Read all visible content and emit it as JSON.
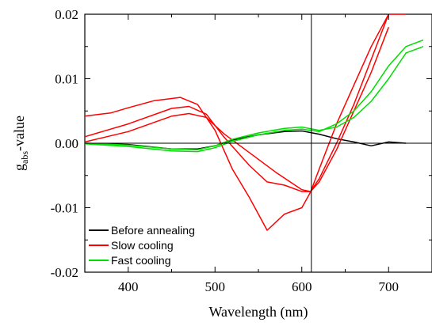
{
  "chart_data": {
    "type": "line",
    "xlabel": "Wavelength (nm)",
    "ylabel_main": "g",
    "ylabel_sub": "abs",
    "ylabel_rest": "-value",
    "xlim": [
      350,
      750
    ],
    "ylim": [
      -0.02,
      0.02
    ],
    "x_ticks": [
      400,
      500,
      600,
      700
    ],
    "x_tick_labels": [
      "400",
      "500",
      "600",
      "700"
    ],
    "y_ticks": [
      -0.02,
      -0.01,
      0.0,
      0.01,
      0.02
    ],
    "y_tick_labels": [
      "-0.02",
      "-0.01",
      "0.00",
      "0.01",
      "0.02"
    ],
    "reference_lines": {
      "horizontal_y": 0.0,
      "vertical_x": 611
    },
    "grid": false,
    "legend_position": "bottom-left",
    "series": [
      {
        "name": "Before annealing",
        "color": "#000000",
        "x": [
          350,
          400,
          450,
          480,
          500,
          520,
          550,
          580,
          600,
          620,
          640,
          660,
          680,
          700,
          720
        ],
        "y": [
          0.0,
          -0.0002,
          -0.0009,
          -0.0009,
          -0.0004,
          0.0005,
          0.0013,
          0.0018,
          0.0019,
          0.0014,
          0.0007,
          0.0002,
          -0.0004,
          0.0002,
          0.0
        ]
      },
      {
        "name": "Slow cooling",
        "color": "#ff0000",
        "x": [
          350,
          380,
          400,
          430,
          460,
          480,
          500,
          520,
          540,
          560,
          580,
          600,
          610,
          620,
          640,
          660,
          680,
          700,
          720
        ],
        "y": [
          0.0042,
          0.0047,
          0.0055,
          0.0066,
          0.0071,
          0.006,
          0.002,
          -0.004,
          -0.0085,
          -0.0135,
          -0.011,
          -0.01,
          -0.0076,
          -0.004,
          0.003,
          0.009,
          0.015,
          0.02,
          0.02
        ]
      },
      {
        "name": "Slow cooling",
        "color": "#ff0000",
        "x": [
          350,
          400,
          450,
          470,
          490,
          510,
          540,
          560,
          580,
          600,
          610,
          620,
          640,
          660,
          680,
          700
        ],
        "y": [
          0.001,
          0.003,
          0.0054,
          0.0057,
          0.0045,
          0.001,
          -0.0035,
          -0.006,
          -0.0065,
          -0.0075,
          -0.0075,
          -0.0055,
          0.0,
          0.006,
          0.013,
          0.02
        ]
      },
      {
        "name": "Slow cooling",
        "color": "#ff0000",
        "x": [
          350,
          400,
          450,
          470,
          490,
          510,
          540,
          570,
          600,
          610,
          620,
          640,
          660,
          680,
          700
        ],
        "y": [
          0.0002,
          0.0018,
          0.0042,
          0.0046,
          0.004,
          0.0015,
          -0.0015,
          -0.0045,
          -0.0072,
          -0.0075,
          -0.006,
          -0.001,
          0.005,
          0.011,
          0.018
        ]
      },
      {
        "name": "Fast cooling",
        "color": "#00dd00",
        "x": [
          350,
          400,
          450,
          480,
          500,
          520,
          550,
          580,
          600,
          620,
          640,
          660,
          680,
          700,
          720,
          740
        ],
        "y": [
          -0.0001,
          -0.0005,
          -0.0012,
          -0.0013,
          -0.0007,
          0.0003,
          0.0013,
          0.002,
          0.0022,
          0.0018,
          0.003,
          0.005,
          0.008,
          0.012,
          0.015,
          0.016
        ]
      },
      {
        "name": "Fast cooling",
        "color": "#00dd00",
        "x": [
          350,
          400,
          450,
          480,
          500,
          520,
          550,
          580,
          600,
          620,
          640,
          660,
          680,
          700,
          720,
          740
        ],
        "y": [
          0.0,
          -0.0003,
          -0.0009,
          -0.001,
          -0.0004,
          0.0006,
          0.0016,
          0.0023,
          0.0025,
          0.002,
          0.0025,
          0.004,
          0.0065,
          0.01,
          0.014,
          0.015
        ]
      }
    ]
  }
}
